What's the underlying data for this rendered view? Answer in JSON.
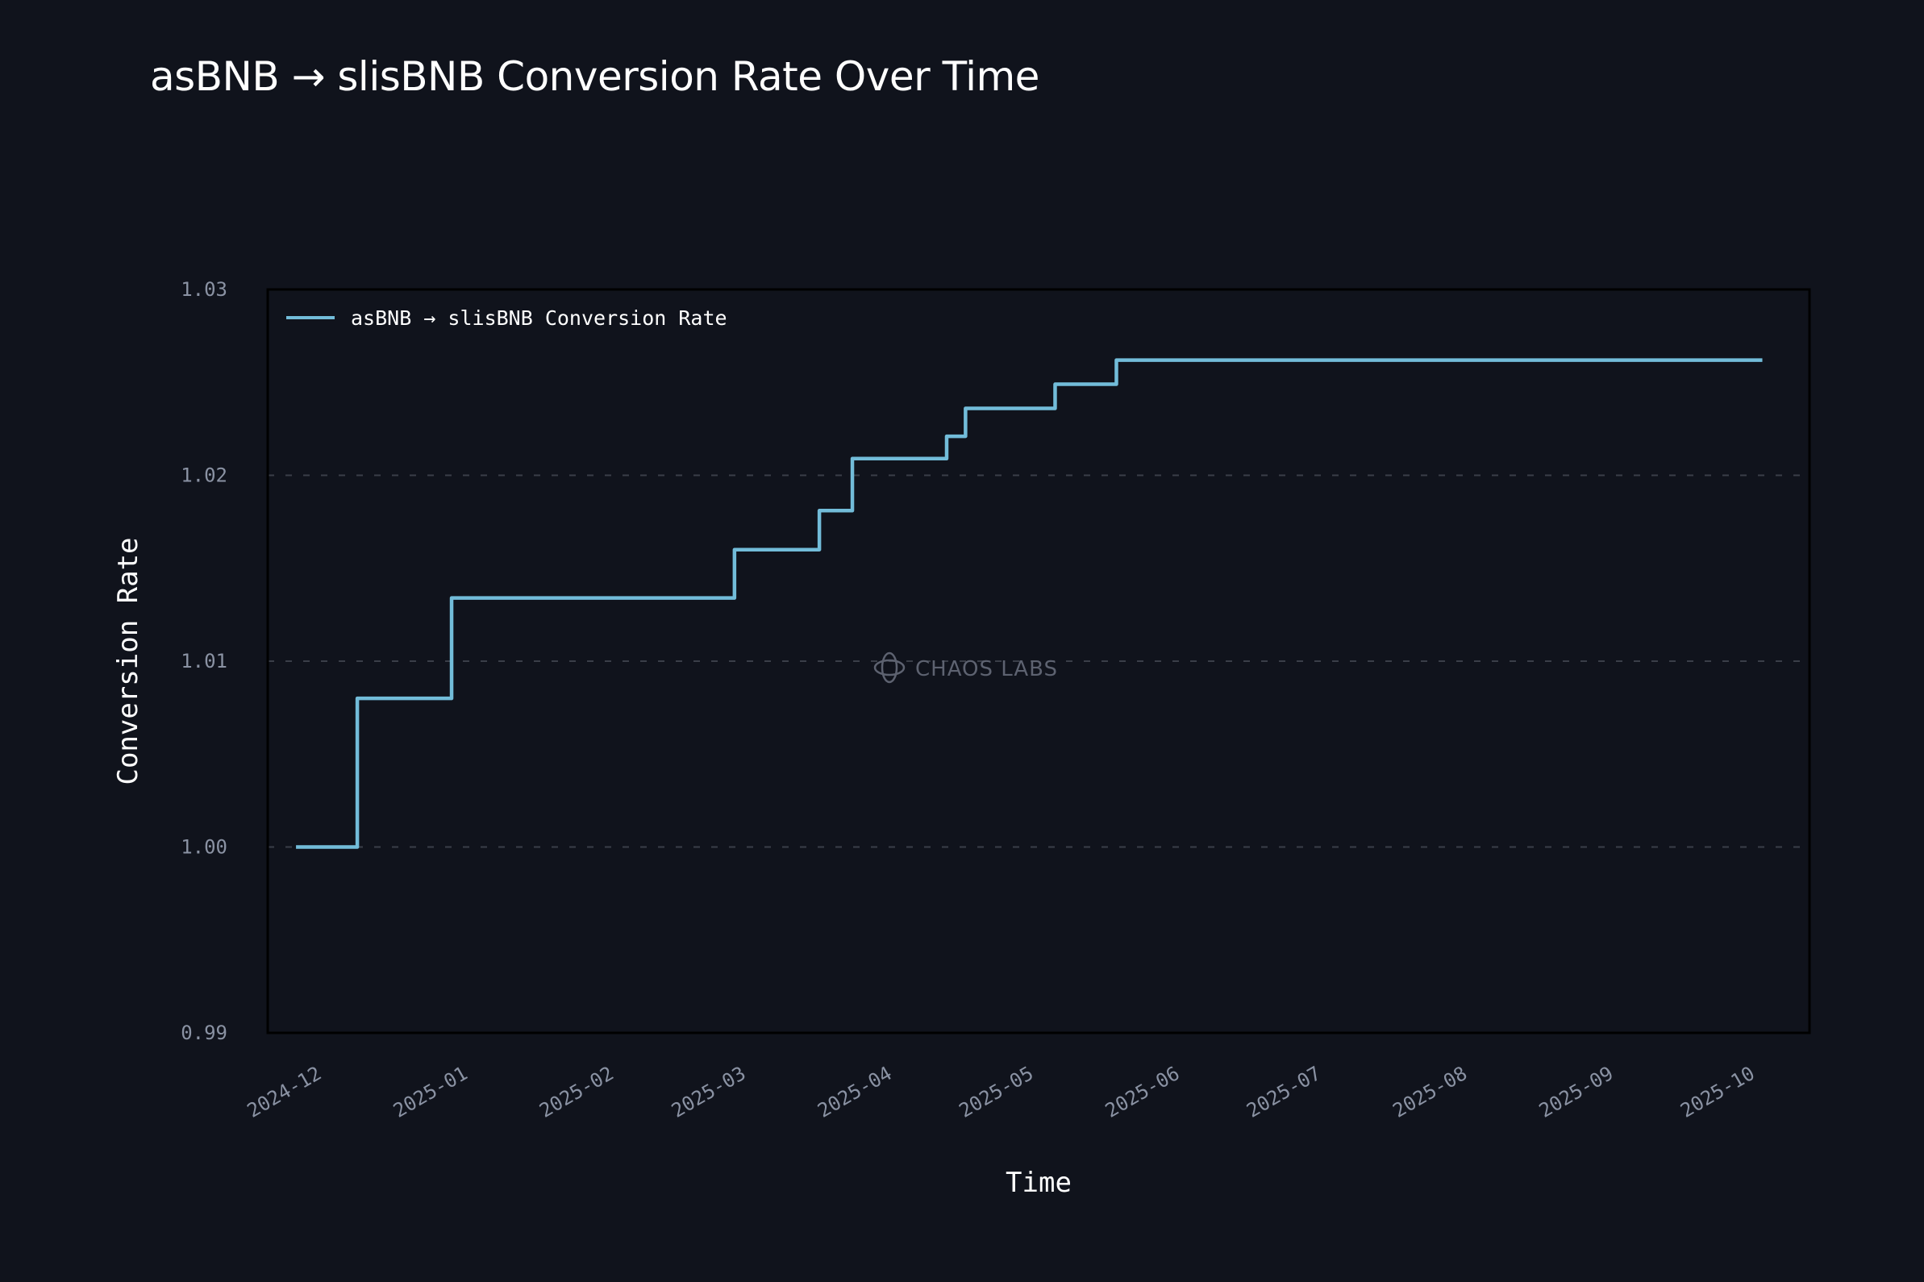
{
  "page": {
    "title": "asBNB → slisBNB Conversion Rate Over Time",
    "watermark": "CHAOS LABS",
    "watermark_icon": "chaos-labs-logo-icon"
  },
  "colors": {
    "background": "#10131c",
    "line": "#72bcd9",
    "grid": "#3a3e48",
    "tick_text": "#8a92a3",
    "text": "#ffffff",
    "watermark": "#5d6270"
  },
  "chart_data": {
    "type": "line",
    "step": "post",
    "title": "asBNB → slisBNB Conversion Rate Over Time",
    "xlabel": "Time",
    "ylabel": "Conversion Rate",
    "ylim": [
      0.99,
      1.03
    ],
    "xlim": [
      "2024-11-20",
      "2025-10-13"
    ],
    "yticks": [
      0.99,
      1.0,
      1.01,
      1.02,
      1.03
    ],
    "ytick_labels": [
      "0.99",
      "1.00",
      "1.01",
      "1.02",
      "1.03"
    ],
    "xticks": [
      "2024-12-01",
      "2025-01-01",
      "2025-02-01",
      "2025-03-01",
      "2025-04-01",
      "2025-05-01",
      "2025-06-01",
      "2025-07-01",
      "2025-08-01",
      "2025-09-01",
      "2025-10-01"
    ],
    "xtick_labels": [
      "2024-12",
      "2025-01",
      "2025-02",
      "2025-03",
      "2025-04",
      "2025-05",
      "2025-06",
      "2025-07",
      "2025-08",
      "2025-09",
      "2025-10"
    ],
    "grid": "horizontal dashed",
    "legend": {
      "position": "top-left",
      "entries": [
        "asBNB → slisBNB Conversion Rate"
      ]
    },
    "series": [
      {
        "name": "asBNB → slisBNB Conversion Rate",
        "x": [
          "2024-11-26",
          "2024-12-09",
          "2024-12-29",
          "2025-02-27",
          "2025-03-17",
          "2025-03-24",
          "2025-04-13",
          "2025-04-17",
          "2025-05-06",
          "2025-05-19",
          "2025-10-03"
        ],
        "y": [
          1.0,
          1.008,
          1.0134,
          1.016,
          1.0181,
          1.0209,
          1.0221,
          1.0236,
          1.0249,
          1.0262,
          1.0262
        ]
      }
    ]
  }
}
